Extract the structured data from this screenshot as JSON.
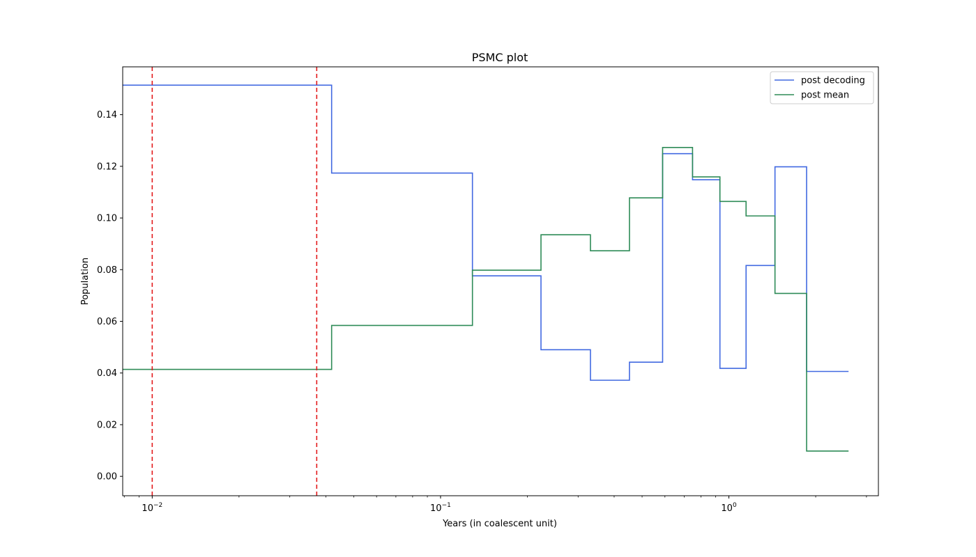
{
  "chart_data": {
    "type": "line",
    "title": "PSMC plot",
    "xlabel": "Years (in coalescent unit)",
    "ylabel": "Population",
    "xscale": "log",
    "xlim": [
      0.0079,
      3.3
    ],
    "ylim": [
      -0.0075,
      0.1585
    ],
    "grid": false,
    "legend_position": "top-right",
    "x_ticks": [
      {
        "value": 0.01,
        "base": "10",
        "exp": "−2"
      },
      {
        "value": 0.1,
        "base": "10",
        "exp": "−1"
      },
      {
        "value": 1,
        "base": "10",
        "exp": "0"
      }
    ],
    "y_ticks": [
      "0.00",
      "0.02",
      "0.04",
      "0.06",
      "0.08",
      "0.10",
      "0.12",
      "0.14"
    ],
    "series": [
      {
        "name": "post decoding",
        "color": "#4169e1",
        "step": "post",
        "x": [
          0.0079,
          0.0419,
          0.129,
          0.223,
          0.331,
          0.452,
          0.589,
          0.748,
          0.931,
          1.147,
          1.445,
          1.86,
          2.6
        ],
        "y": [
          0.1514,
          0.1174,
          0.0776,
          0.049,
          0.0372,
          0.0442,
          0.1249,
          0.1148,
          0.0418,
          0.0816,
          0.1198,
          0.0406,
          0.0406
        ]
      },
      {
        "name": "post mean",
        "color": "#2e8b57",
        "step": "post",
        "x": [
          0.0079,
          0.0419,
          0.129,
          0.223,
          0.331,
          0.452,
          0.589,
          0.748,
          0.931,
          1.147,
          1.445,
          1.86,
          2.6
        ],
        "y": [
          0.0414,
          0.0584,
          0.0798,
          0.0935,
          0.0873,
          0.1078,
          0.1273,
          0.1159,
          0.1064,
          0.1008,
          0.0708,
          0.0098,
          0.0098
        ]
      }
    ],
    "vlines": [
      {
        "x": 0.01,
        "color": "#e31a1c",
        "style": "dashed"
      },
      {
        "x": 0.0372,
        "color": "#e31a1c",
        "style": "dashed"
      }
    ]
  }
}
